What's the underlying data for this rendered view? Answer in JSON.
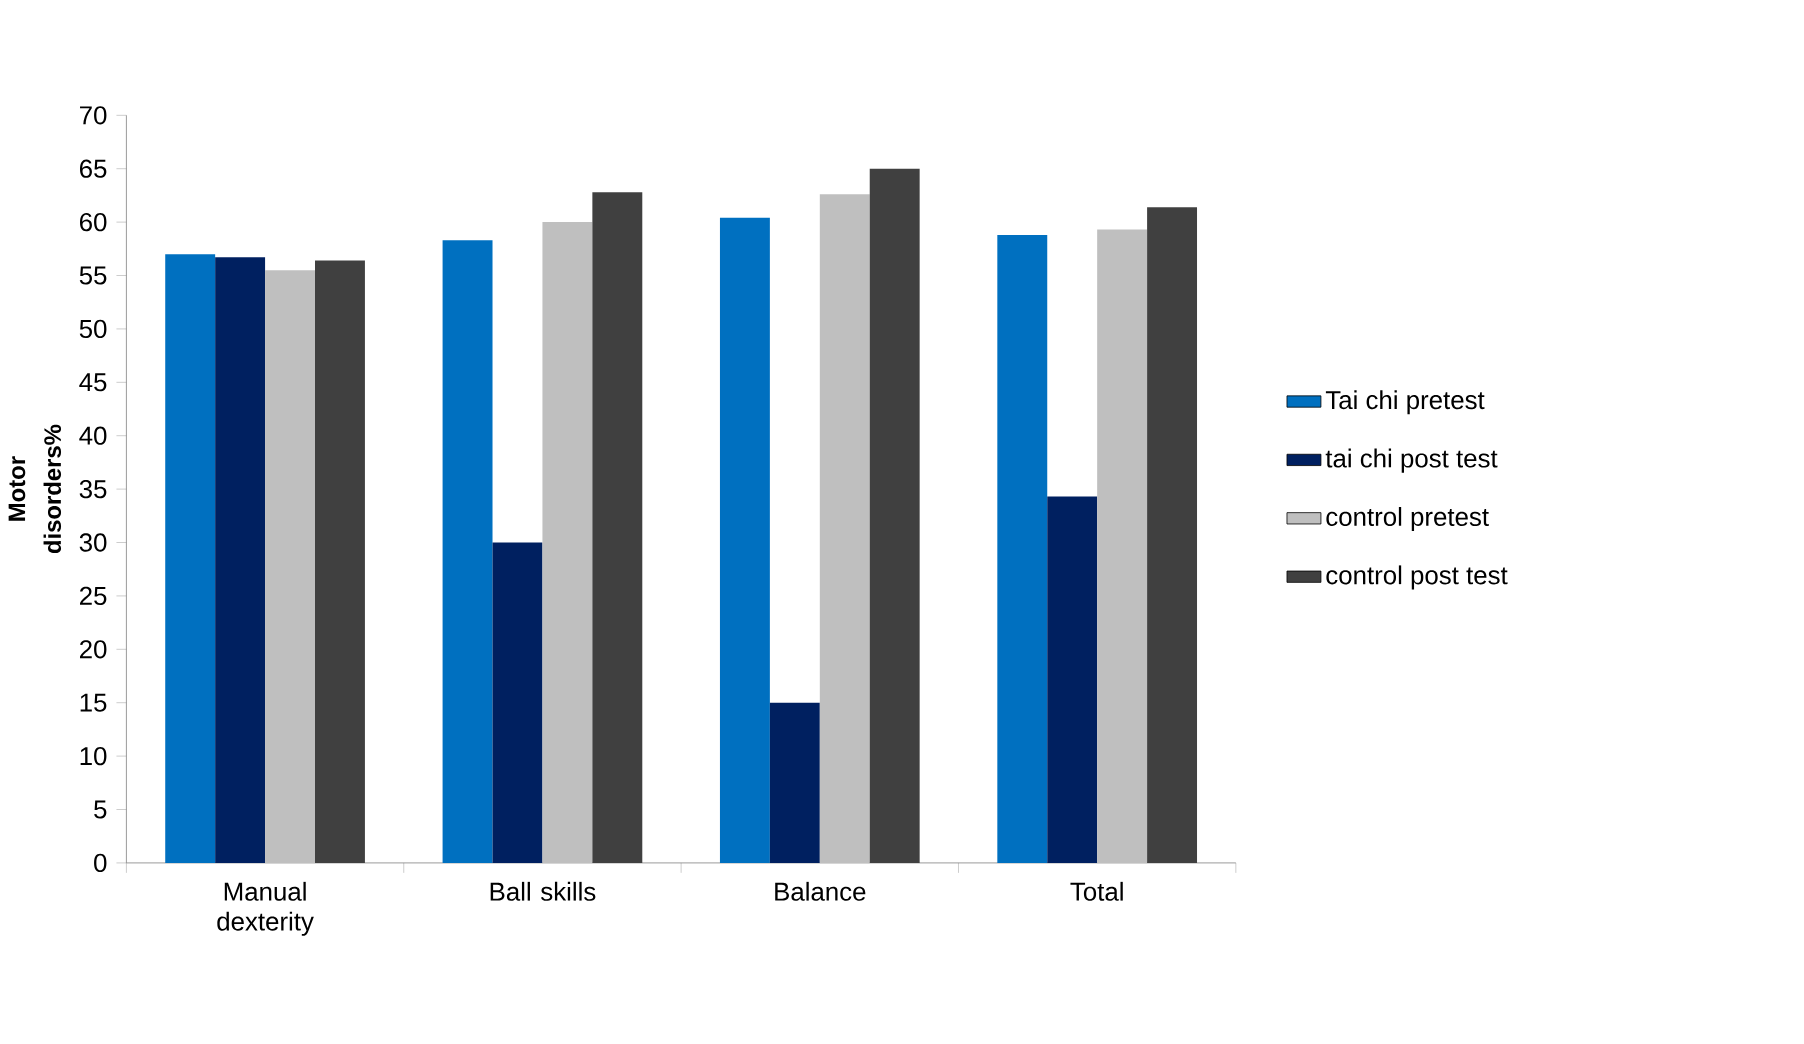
{
  "chart_data": {
    "type": "bar",
    "ylabel": "Motor disorders%",
    "categories": [
      "Manual dexterity",
      "Ball skills",
      "Balance",
      "Total"
    ],
    "series": [
      {
        "name": "Tai chi pretest",
        "color": "#0070c0",
        "values": [
          57,
          58.3,
          60.4,
          58.8
        ]
      },
      {
        "name": "tai chi post test",
        "color": "#002060",
        "values": [
          56.7,
          30,
          15,
          34.3
        ]
      },
      {
        "name": "control pretest",
        "color": "#bfbfbf",
        "values": [
          55.5,
          60,
          62.6,
          59.3
        ]
      },
      {
        "name": "control post test",
        "color": "#404040",
        "values": [
          56.4,
          62.8,
          65,
          61.4
        ]
      }
    ],
    "ylim": [
      0,
      70
    ],
    "yticks": [
      0,
      5,
      10,
      15,
      20,
      25,
      30,
      35,
      40,
      45,
      50,
      55,
      60,
      65,
      70
    ],
    "legend": "right",
    "grid": false
  }
}
